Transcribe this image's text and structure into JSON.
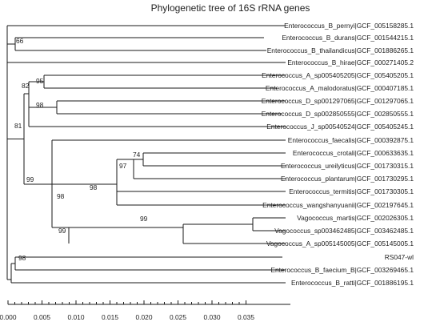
{
  "title": "Phylogenetic tree of  16S rRNA genes",
  "highlight_color": "#e8221b",
  "leaves": [
    {
      "label": "Enterococcus_B_pernyi|GCF_005158285.1"
    },
    {
      "label": "Enterococcus_B_durans|GCF_001544215.1"
    },
    {
      "label": "Enterococcus_B_thailandicus|GCF_001886265.1"
    },
    {
      "label": "Enterococcus_B_hirae|GCF_000271405.2"
    },
    {
      "label": "Enterococcus_A_sp005405205|GCF_005405205.1"
    },
    {
      "label": "Enterococcus_A_malodoratus|GCF_000407185.1"
    },
    {
      "label": "Enterococcus_D_sp001297065|GCF_001297065.1"
    },
    {
      "label": "Enterococcus_D_sp002850555|GCF_002850555.1"
    },
    {
      "label": "Enterococcus_J_sp00540524|GCF_005405245.1"
    },
    {
      "label": "Enterococcus_faecalis|GCF_000392875.1"
    },
    {
      "label": "Enterococcus_crotali|GCF_000633635.1"
    },
    {
      "label": "Enterococcus_ureilyticus|GCF_001730315.1"
    },
    {
      "label": "Enterococcus_plantarum|GCF_001730295.1"
    },
    {
      "label": "Enterococcus_termitis|GCF_001730305.1"
    },
    {
      "label": "Enterococcus_wangshanyuanii|GCF_002197645.1"
    },
    {
      "label": "Vagococcus_martis|GCF_002026305.1"
    },
    {
      "label": "Vagococcus_sp003462485|GCF_003462485.1"
    },
    {
      "label": "Vagococcus_A_sp005145005|GCF_005145005.1"
    },
    {
      "label": "RS047-wl",
      "highlight": true
    },
    {
      "label": "Enterococcus_B_faecium_B|GCF_003269465.1"
    },
    {
      "label": "Enterococcus_B_ratti|GCF_001886195.1"
    }
  ],
  "bootstrap": [
    "66",
    "82",
    "95",
    "98",
    "81",
    "99",
    "74",
    "97",
    "98",
    "98",
    "99",
    "99",
    "98"
  ],
  "scale_ticks": [
    "0.000",
    "0.005",
    "0.010",
    "0.015",
    "0.020",
    "0.025",
    "0.030",
    "0.035"
  ],
  "scale_values": [
    0,
    0.005,
    0.01,
    0.015,
    0.02,
    0.025,
    0.03,
    0.035
  ]
}
